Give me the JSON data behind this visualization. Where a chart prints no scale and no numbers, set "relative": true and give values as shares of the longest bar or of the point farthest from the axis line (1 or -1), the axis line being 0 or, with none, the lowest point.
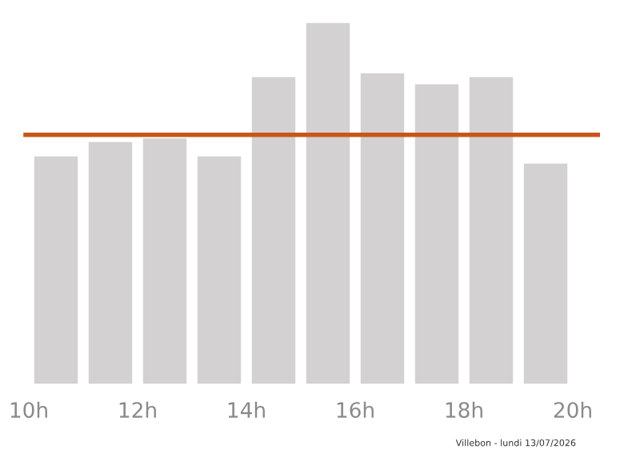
{
  "chart_data": {
    "type": "bar",
    "relative": true,
    "x": [
      10.5,
      11.5,
      12.5,
      13.5,
      14.5,
      15.5,
      16.5,
      17.5,
      18.5,
      19.5
    ],
    "values": [
      0.63,
      0.67,
      0.68,
      0.63,
      0.85,
      1,
      0.86,
      0.83,
      0.85,
      0.61
    ],
    "color": "#d3d1d2",
    "xlim": [
      9.9,
      20.5
    ],
    "xticks": [
      {
        "value": 10,
        "label": "10h"
      },
      {
        "value": 12,
        "label": "12h"
      },
      {
        "value": 14,
        "label": "14h"
      },
      {
        "value": 16,
        "label": "16h"
      },
      {
        "value": 18,
        "label": "18h"
      },
      {
        "value": 20,
        "label": "20h"
      }
    ],
    "ref_lines": [
      {
        "axis": "y",
        "value": 0.69,
        "color": "#c8561a"
      }
    ],
    "annotations": [
      "Villebon - lundi 13/07/2026"
    ],
    "grid": false,
    "legend": false
  }
}
